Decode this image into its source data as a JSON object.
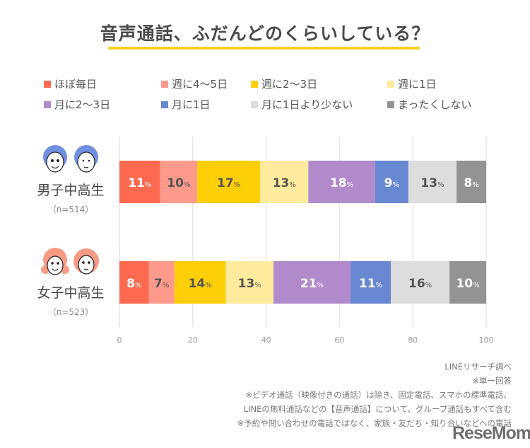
{
  "title": "音声通話、ふだんどのくらいしている？",
  "chart_data": {
    "type": "bar",
    "orientation": "horizontal-stacked-100",
    "title": "音声通話、ふだんどのくらいしている？",
    "categories": [
      "男子中高生",
      "女子中高生"
    ],
    "category_n": [
      "（n=514）",
      "（n=523）"
    ],
    "xlim": [
      0,
      100
    ],
    "xticks": [
      "0",
      "20",
      "40",
      "60",
      "80",
      "100"
    ],
    "grid": true,
    "legend_position": "top",
    "value_suffix": "%",
    "series": [
      {
        "name": "ほぼ毎日",
        "color": "#fe6a50",
        "label_color": "#ffffff",
        "values": [
          11,
          8
        ]
      },
      {
        "name": "週に4〜5日",
        "color": "#fd9a8c",
        "label_color": "#555555",
        "values": [
          10,
          7
        ]
      },
      {
        "name": "週に2〜3日",
        "color": "#fecf07",
        "label_color": "#555555",
        "values": [
          17,
          14
        ]
      },
      {
        "name": "週に1日",
        "color": "#feeb9d",
        "label_color": "#555555",
        "values": [
          13,
          13
        ]
      },
      {
        "name": "月に2〜3日",
        "color": "#b18acb",
        "label_color": "#ffffff",
        "values": [
          18,
          21
        ]
      },
      {
        "name": "月に1日",
        "color": "#6988d2",
        "label_color": "#ffffff",
        "values": [
          9,
          11
        ]
      },
      {
        "name": "月に1日より少ない",
        "color": "#dddddd",
        "label_color": "#555555",
        "values": [
          13,
          16
        ]
      },
      {
        "name": "まったくしない",
        "color": "#939393",
        "label_color": "#ffffff",
        "values": [
          8,
          10
        ]
      }
    ]
  },
  "notes": [
    "LINEリサーチ調べ",
    "※単一回答",
    "※ビデオ通話（映像付きの通話）は除き、固定電話、スマホの標準電話、",
    "LINEの無料通話などの【音声通話】について、グループ通話もすべて含む",
    "※予約や問い合わせの電話ではなく、家族・友だち・知り合いなどへの電話"
  ],
  "logo": "ReseMom",
  "colors": {
    "title_underline": "#f9d11f",
    "boy_icon": "#6f8fe0",
    "girl_icon": "#f79b85"
  }
}
